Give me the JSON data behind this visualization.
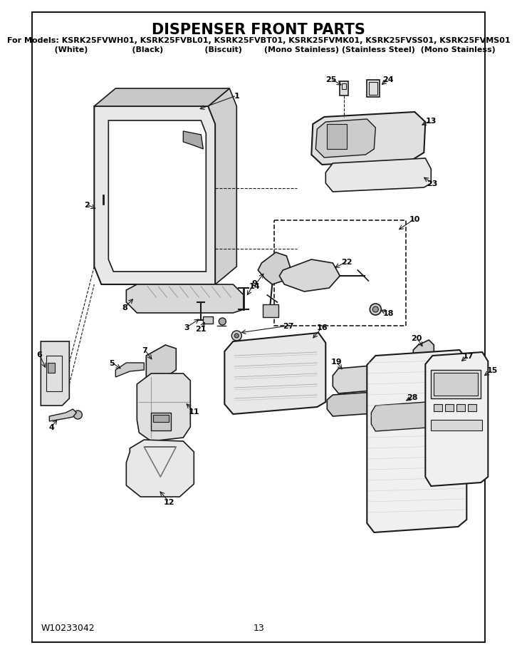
{
  "title": "DISPENSER FRONT PARTS",
  "subtitle_line1": "For Models: KSRK25FVWH01, KSRK25FVBL01, KSRK25FVBT01, KSRK25FVMK01, KSRK25FVSS01, KSRK25FVMS01",
  "subtitle_line2": "               (White)                    (Black)                  (Biscuit)          (Mono Stainless) (Stainless Steel)  (Mono Stainless)",
  "footer_left": "W10233042",
  "footer_center": "13",
  "bg_color": "#ffffff",
  "text_color": "#000000",
  "title_fontsize": 15,
  "subtitle_fontsize": 8,
  "footer_fontsize": 9
}
